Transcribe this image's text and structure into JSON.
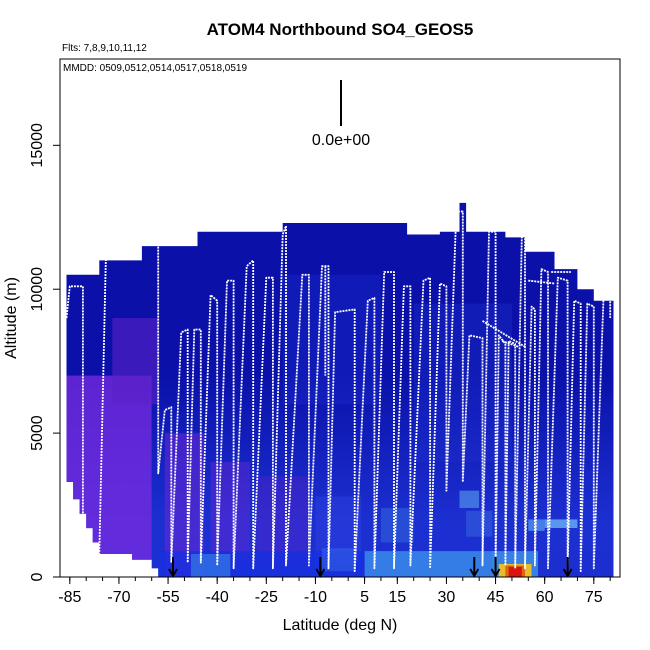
{
  "chart_data": {
    "type": "heatmap",
    "title": "ATOM4 Northbound SO4_GEOS5",
    "flights_label": "Flts: 7,8,9,10,11,12",
    "dates_label": "MMDD: 0509,0512,0514,0517,0518,0519",
    "scale_label": "0.0e+00",
    "xlabel": "Latitude (deg N)",
    "ylabel": "Altitude (m)",
    "xlim": [
      -88,
      83
    ],
    "ylim": [
      0,
      18000
    ],
    "x_ticks": [
      -85,
      -70,
      -55,
      -40,
      -25,
      -10,
      5,
      15,
      30,
      45,
      60,
      75
    ],
    "x_tick_labels": [
      "-85",
      "-70",
      "-55",
      "-40",
      "-25",
      "-10",
      "5",
      "15",
      "30",
      "45",
      "60",
      "75"
    ],
    "y_ticks": [
      0,
      5000,
      10000,
      15000
    ],
    "y_tick_labels": [
      "0",
      "5000",
      "10000",
      "15000"
    ],
    "grid": false,
    "colors": {
      "background": "#ffffff",
      "deep_blue": "#0a10a8",
      "blue": "#1c2fd0",
      "purple": "#7a2be0",
      "light_blue": "#3a8ae8",
      "hotspot_red": "#d81010",
      "hotspot_yellow": "#f0c020",
      "flight_track": "#ffffff",
      "arrow": "#000000"
    },
    "ceiling": [
      [
        -86,
        10500
      ],
      [
        -76,
        10500
      ],
      [
        -76,
        11000
      ],
      [
        -63,
        11000
      ],
      [
        -63,
        11500
      ],
      [
        -46,
        11500
      ],
      [
        -46,
        12000
      ],
      [
        -20,
        12000
      ],
      [
        -20,
        12300
      ],
      [
        18,
        12300
      ],
      [
        18,
        11900
      ],
      [
        28,
        11900
      ],
      [
        28,
        12000
      ],
      [
        34,
        12000
      ],
      [
        34,
        13000
      ],
      [
        36,
        13000
      ],
      [
        36,
        12000
      ],
      [
        48,
        12000
      ],
      [
        48,
        11800
      ],
      [
        54,
        11800
      ],
      [
        54,
        11300
      ],
      [
        63,
        11300
      ],
      [
        63,
        10700
      ],
      [
        70,
        10700
      ],
      [
        70,
        10000
      ],
      [
        75,
        10000
      ],
      [
        75,
        9600
      ],
      [
        81,
        9600
      ]
    ],
    "floor": [
      [
        -86,
        3300
      ],
      [
        -84,
        3300
      ],
      [
        -84,
        2700
      ],
      [
        -82,
        2700
      ],
      [
        -82,
        2200
      ],
      [
        -80,
        2200
      ],
      [
        -80,
        1700
      ],
      [
        -78,
        1700
      ],
      [
        -78,
        1200
      ],
      [
        -76,
        1200
      ],
      [
        -76,
        800
      ],
      [
        -66,
        800
      ],
      [
        -66,
        600
      ],
      [
        -60,
        600
      ],
      [
        -60,
        300
      ],
      [
        -58,
        300
      ],
      [
        -58,
        0
      ]
    ],
    "patches": [
      {
        "x": [
          -86,
          -60
        ],
        "y": [
          0,
          7000
        ],
        "color": "#7a2be0",
        "opacity": 0.75
      },
      {
        "x": [
          -72,
          -58
        ],
        "y": [
          6000,
          9000
        ],
        "color": "#5a22c8",
        "opacity": 0.6
      },
      {
        "x": [
          -56,
          -44
        ],
        "y": [
          0,
          5000
        ],
        "color": "#6a28d4",
        "opacity": 0.55
      },
      {
        "x": [
          -42,
          -30
        ],
        "y": [
          500,
          4000
        ],
        "color": "#6a28d4",
        "opacity": 0.45
      },
      {
        "x": [
          -28,
          -12
        ],
        "y": [
          300,
          3500
        ],
        "color": "#5a22c8",
        "opacity": 0.4
      },
      {
        "x": [
          -10,
          4
        ],
        "y": [
          400,
          2800
        ],
        "color": "#2c3fe0",
        "opacity": 0.5
      },
      {
        "x": [
          -58,
          40
        ],
        "y": [
          0,
          900
        ],
        "color": "#1730e0",
        "opacity": 0.8
      },
      {
        "x": [
          -48,
          -36
        ],
        "y": [
          0,
          800
        ],
        "color": "#3a8ae8",
        "opacity": 0.6
      },
      {
        "x": [
          -8,
          2
        ],
        "y": [
          200,
          1000
        ],
        "color": "#3a6ae8",
        "opacity": 0.5
      },
      {
        "x": [
          5,
          45
        ],
        "y": [
          0,
          900
        ],
        "color": "#3a8ae8",
        "opacity": 0.85
      },
      {
        "x": [
          10,
          20
        ],
        "y": [
          1200,
          2400
        ],
        "color": "#3a7ae0",
        "opacity": 0.4
      },
      {
        "x": [
          34,
          40
        ],
        "y": [
          2400,
          3000
        ],
        "color": "#5aa0f0",
        "opacity": 0.6
      },
      {
        "x": [
          36,
          44
        ],
        "y": [
          1400,
          2300
        ],
        "color": "#3a6ae0",
        "opacity": 0.5
      },
      {
        "x": [
          55,
          60
        ],
        "y": [
          1600,
          2000
        ],
        "color": "#5aa0f0",
        "opacity": 0.7
      },
      {
        "x": [
          60,
          70
        ],
        "y": [
          1700,
          2000
        ],
        "color": "#6ab0f0",
        "opacity": 0.8
      },
      {
        "x": [
          44,
          58
        ],
        "y": [
          0,
          900
        ],
        "color": "#3a8ae8",
        "opacity": 0.9
      },
      {
        "x": [
          46,
          56
        ],
        "y": [
          0,
          450
        ],
        "color": "#f0c020",
        "opacity": 0.95
      },
      {
        "x": [
          48,
          54
        ],
        "y": [
          0,
          400
        ],
        "color": "#e06010",
        "opacity": 0.95
      },
      {
        "x": [
          49,
          53
        ],
        "y": [
          0,
          350
        ],
        "color": "#d81010",
        "opacity": 0.95
      },
      {
        "x": [
          62,
          80
        ],
        "y": [
          0,
          900
        ],
        "color": "#1c2fd0",
        "opacity": 0.6
      },
      {
        "x": [
          -20,
          10
        ],
        "y": [
          6000,
          10500
        ],
        "color": "#1c2fd0",
        "opacity": 0.35
      },
      {
        "x": [
          20,
          50
        ],
        "y": [
          4000,
          9500
        ],
        "color": "#2030d0",
        "opacity": 0.35
      }
    ],
    "flight_track": [
      [
        -86,
        9000
      ],
      [
        -85,
        10100
      ],
      [
        -81,
        10100
      ],
      [
        -81,
        300
      ],
      [
        -76,
        800
      ],
      [
        -74,
        11000
      ],
      [
        -70,
        11500
      ],
      [
        -69,
        11500
      ],
      [
        -58,
        11700
      ],
      [
        -58,
        3600
      ],
      [
        -56,
        5800
      ],
      [
        -54,
        5900
      ],
      [
        -54,
        500
      ],
      [
        -51,
        8500
      ],
      [
        -49,
        8600
      ],
      [
        -49,
        500
      ],
      [
        -47,
        8600
      ],
      [
        -45,
        8600
      ],
      [
        -45,
        500
      ],
      [
        -42,
        9800
      ],
      [
        -40,
        9600
      ],
      [
        -40,
        400
      ],
      [
        -37,
        10300
      ],
      [
        -35,
        10300
      ],
      [
        -35,
        300
      ],
      [
        -31,
        10800
      ],
      [
        -29,
        11000
      ],
      [
        -29,
        300
      ],
      [
        -25,
        10400
      ],
      [
        -23,
        10400
      ],
      [
        -23,
        300
      ],
      [
        -20,
        11900
      ],
      [
        -19,
        12200
      ],
      [
        -19,
        400
      ],
      [
        -14,
        10500
      ],
      [
        -12,
        10500
      ],
      [
        -12,
        400
      ],
      [
        -8,
        10800
      ],
      [
        -6,
        10800
      ],
      [
        -6,
        300
      ],
      [
        -4,
        9200
      ],
      [
        2,
        9300
      ],
      [
        2,
        200
      ],
      [
        6,
        9600
      ],
      [
        8,
        9700
      ],
      [
        8,
        300
      ],
      [
        11,
        10600
      ],
      [
        14,
        10600
      ],
      [
        14,
        300
      ],
      [
        17,
        10100
      ],
      [
        19,
        10100
      ],
      [
        19,
        400
      ],
      [
        23,
        10300
      ],
      [
        25,
        10400
      ],
      [
        25,
        300
      ],
      [
        28,
        10200
      ],
      [
        30,
        10100
      ],
      [
        30,
        3000
      ],
      [
        33,
        12700
      ],
      [
        35,
        12700
      ],
      [
        35,
        3300
      ],
      [
        37,
        8400
      ],
      [
        41,
        8300
      ],
      [
        41,
        400
      ],
      [
        43,
        12000
      ],
      [
        45,
        12000
      ],
      [
        45,
        300
      ],
      [
        46,
        8400
      ],
      [
        48,
        8100
      ],
      [
        48,
        400
      ],
      [
        49,
        8200
      ],
      [
        51,
        8100
      ],
      [
        51,
        300
      ],
      [
        53,
        11800
      ],
      [
        54,
        11900
      ],
      [
        54,
        300
      ],
      [
        56,
        9400
      ],
      [
        57,
        9300
      ],
      [
        57,
        400
      ],
      [
        59,
        10700
      ],
      [
        61,
        10600
      ],
      [
        61,
        300
      ],
      [
        64,
        10400
      ],
      [
        67,
        10300
      ],
      [
        67,
        300
      ],
      [
        69,
        9600
      ],
      [
        71,
        9500
      ],
      [
        71,
        200
      ],
      [
        73,
        9500
      ],
      [
        75,
        9400
      ],
      [
        75,
        300
      ],
      [
        78,
        9800
      ],
      [
        80,
        9700
      ],
      [
        80,
        9000
      ]
    ],
    "flight_segments_extra": [
      [
        [
          -7,
          10800
        ],
        [
          -7,
          7000
        ]
      ],
      [
        [
          41,
          8900
        ],
        [
          54,
          8000
        ]
      ],
      [
        [
          55,
          10300
        ],
        [
          63,
          10200
        ]
      ],
      [
        [
          62,
          10600
        ],
        [
          68,
          10600
        ]
      ],
      [
        [
          47,
          8200
        ],
        [
          52,
          8000
        ]
      ]
    ],
    "arrows": [
      -53.5,
      -8.5,
      38.5,
      45,
      67
    ]
  }
}
